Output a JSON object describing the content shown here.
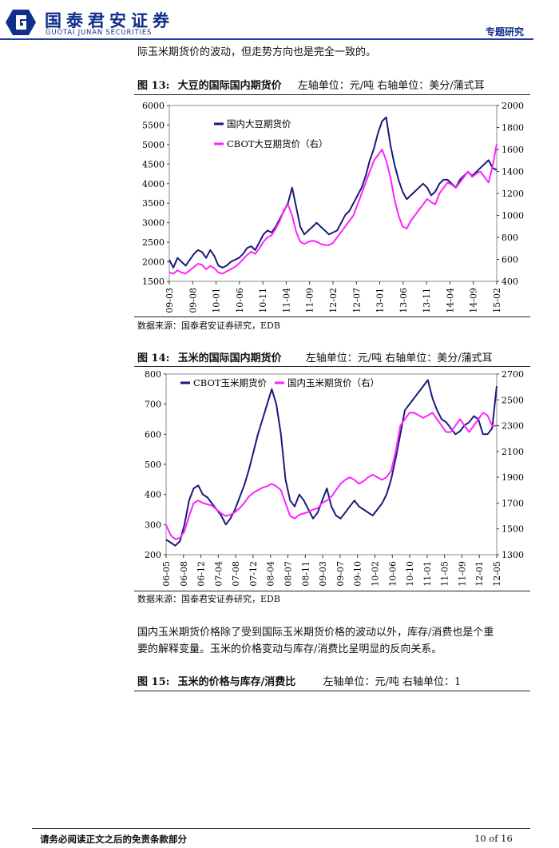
{
  "header": {
    "brand_cn": "国泰君安证券",
    "brand_en": "GUOTAI JUNAN SECURITIES",
    "section": "专题研究"
  },
  "intro_text": "际玉米期货价的波动，但走势方向也是完全一致的。",
  "fig13": {
    "label": "图 13:",
    "title": "大豆的国际国内期货价",
    "units": "左轴单位：元/吨  右轴单位：美分/蒲式耳",
    "source": "数据来源：国泰君安证券研究，EDB"
  },
  "fig14": {
    "label": "图 14:",
    "title": "玉米的国际国内期货价",
    "units": "左轴单位：元/吨  右轴单位：美分/蒲式耳",
    "source": "数据来源：国泰君安证券研究，EDB"
  },
  "paragraph": [
    "国内玉米期货价格除了受到国际玉米期货价格的波动以外，库存/消费也是个重",
    "要的解释变量。玉米的价格变动与库存/消费比呈明显的反向关系。"
  ],
  "fig15": {
    "label": "图 15:",
    "title": "玉米的价格与库存/消费比",
    "units": "左轴单位：元/吨  右轴单位：1"
  },
  "footer": {
    "disclaimer": "请务必阅读正文之后的免责条款部分",
    "page": "10 of 16"
  },
  "colors": {
    "series_a": "#1a1a7a",
    "series_b": "#ff22ff",
    "brand": "#0f2f8a"
  },
  "chart_data": [
    {
      "type": "line",
      "title": "大豆的国际国内期货价",
      "x_ticks": [
        "09-03",
        "09-08",
        "10-01",
        "10-06",
        "10-11",
        "11-04",
        "11-09",
        "12-02",
        "12-07",
        "13-01",
        "13-06",
        "13-11",
        "14-04",
        "14-09",
        "15-02"
      ],
      "y_left": {
        "min": 1500,
        "max": 6000,
        "ticks": [
          1500,
          2000,
          2500,
          3000,
          3500,
          4000,
          4500,
          5000,
          5500,
          6000
        ]
      },
      "y_right": {
        "min": 400,
        "max": 2000,
        "ticks": [
          400,
          600,
          800,
          1000,
          1200,
          1400,
          1600,
          1800,
          2000
        ]
      },
      "legend": [
        "国内大豆期货价",
        "CBOT大豆期货价（右）"
      ],
      "series": [
        {
          "name": "国内大豆期货价",
          "axis": "left",
          "values": [
            2050,
            1850,
            2100,
            2000,
            1900,
            2050,
            2200,
            2300,
            2250,
            2100,
            2300,
            2150,
            1900,
            1850,
            1900,
            2000,
            2050,
            2100,
            2200,
            2350,
            2400,
            2300,
            2500,
            2700,
            2800,
            2750,
            2900,
            3100,
            3300,
            3500,
            3900,
            3400,
            2900,
            2700,
            2800,
            2900,
            3000,
            2900,
            2800,
            2700,
            2750,
            2800,
            3000,
            3200,
            3300,
            3500,
            3700,
            3900,
            4200,
            4600,
            4900,
            5300,
            5600,
            5700,
            5000,
            4500,
            4100,
            3800,
            3600,
            3700,
            3800,
            3900,
            4000,
            3900,
            3700,
            3800,
            4000,
            4100,
            4100,
            4000,
            3900,
            4100,
            4200,
            4300,
            4200,
            4300,
            4400,
            4500,
            4600,
            4400,
            4350
          ]
        },
        {
          "name": "CBOT大豆期货价（右）",
          "axis": "right",
          "values": [
            480,
            470,
            500,
            480,
            470,
            500,
            530,
            560,
            550,
            510,
            540,
            520,
            480,
            470,
            490,
            510,
            530,
            560,
            600,
            640,
            670,
            650,
            700,
            760,
            800,
            820,
            880,
            950,
            1050,
            1100,
            1000,
            850,
            760,
            740,
            760,
            770,
            760,
            740,
            730,
            730,
            750,
            800,
            850,
            900,
            950,
            1000,
            1100,
            1200,
            1300,
            1400,
            1500,
            1550,
            1600,
            1500,
            1350,
            1150,
            1000,
            900,
            880,
            950,
            1000,
            1050,
            1100,
            1150,
            1120,
            1100,
            1200,
            1250,
            1300,
            1280,
            1250,
            1300,
            1350,
            1400,
            1350,
            1380,
            1400,
            1350,
            1300,
            1450,
            1650
          ]
        }
      ]
    },
    {
      "type": "line",
      "title": "玉米的国际国内期货价",
      "x_ticks": [
        "06-05",
        "06-08",
        "06-12",
        "07-04",
        "07-08",
        "07-12",
        "08-04",
        "08-07",
        "08-11",
        "09-03",
        "09-07",
        "09-10",
        "10-02",
        "10-06",
        "10-10",
        "11-01",
        "11-05",
        "11-09",
        "12-01",
        "12-05"
      ],
      "y_left": {
        "min": 200,
        "max": 800,
        "ticks": [
          200,
          300,
          400,
          500,
          600,
          700,
          800
        ]
      },
      "y_right": {
        "min": 1300,
        "max": 2700,
        "ticks": [
          1300,
          1500,
          1700,
          1900,
          2100,
          2300,
          2500,
          2700
        ]
      },
      "legend": [
        "CBOT玉米期货价",
        "国内玉米期货价（右）"
      ],
      "series": [
        {
          "name": "CBOT玉米期货价",
          "axis": "left",
          "values": [
            250,
            240,
            230,
            245,
            300,
            380,
            420,
            430,
            400,
            390,
            370,
            350,
            330,
            300,
            320,
            350,
            390,
            430,
            480,
            540,
            600,
            650,
            700,
            750,
            700,
            600,
            450,
            380,
            360,
            400,
            380,
            350,
            320,
            340,
            380,
            420,
            360,
            330,
            320,
            340,
            360,
            380,
            360,
            350,
            340,
            330,
            350,
            370,
            400,
            450,
            520,
            600,
            680,
            700,
            720,
            740,
            760,
            780,
            720,
            680,
            650,
            640,
            620,
            600,
            610,
            630,
            640,
            660,
            650,
            600,
            600,
            620,
            760
          ]
        },
        {
          "name": "国内玉米期货价（右）",
          "axis": "right",
          "values": [
            1530,
            1450,
            1420,
            1430,
            1480,
            1600,
            1700,
            1720,
            1700,
            1690,
            1680,
            1650,
            1620,
            1600,
            1610,
            1630,
            1660,
            1700,
            1750,
            1780,
            1800,
            1820,
            1830,
            1850,
            1830,
            1800,
            1700,
            1600,
            1580,
            1610,
            1620,
            1630,
            1650,
            1660,
            1700,
            1720,
            1750,
            1800,
            1850,
            1880,
            1900,
            1880,
            1850,
            1870,
            1900,
            1920,
            1900,
            1880,
            1900,
            1950,
            2100,
            2300,
            2350,
            2400,
            2400,
            2380,
            2360,
            2380,
            2400,
            2350,
            2300,
            2250,
            2250,
            2300,
            2350,
            2300,
            2250,
            2300,
            2350,
            2400,
            2380,
            2300,
            2300
          ]
        }
      ]
    }
  ]
}
